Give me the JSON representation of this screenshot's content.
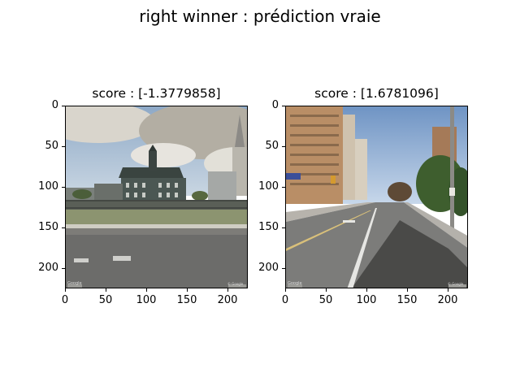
{
  "figure": {
    "suptitle": "right winner : prédiction vraie"
  },
  "panels": [
    {
      "title": "score : [-1.3779858]",
      "image_description_icon": "street-view-photo-building",
      "xticks": [
        "0",
        "50",
        "100",
        "150",
        "200"
      ],
      "yticks": [
        "0",
        "50",
        "100",
        "150",
        "200"
      ],
      "watermark_left": "Google",
      "watermark_right": "© Google"
    },
    {
      "title": "score : [1.6781096]",
      "image_description_icon": "street-view-photo-road",
      "xticks": [
        "0",
        "50",
        "100",
        "150",
        "200"
      ],
      "yticks": [
        "0",
        "50",
        "100",
        "150",
        "200"
      ],
      "watermark_left": "Google",
      "watermark_right": "© Google"
    }
  ]
}
